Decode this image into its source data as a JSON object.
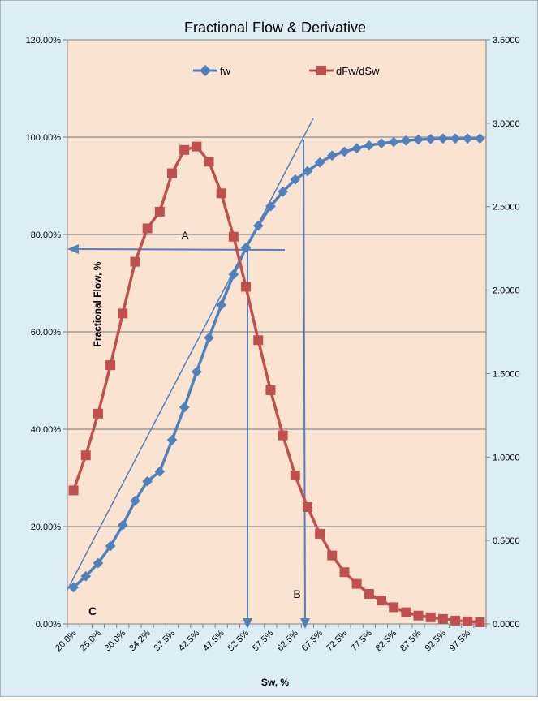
{
  "chart_data": {
    "type": "line",
    "title": "Fractional Flow & Derivative",
    "xlabel": "Sw, %",
    "ylabel": "Fractional Flow, %",
    "y2label": "",
    "legend_position": "top",
    "grid": true,
    "colors": {
      "outer_bg": "#dcedf5",
      "plot_bg": "#fbe3d1",
      "fw": "#4f81bd",
      "dfw": "#c0504d",
      "annotation": "#4f81bd",
      "grid": "#8c8c8c"
    },
    "ylim": [
      0,
      1.2
    ],
    "y2lim": [
      0,
      3.5
    ],
    "y_ticks": [
      "0.00%",
      "20.00%",
      "40.00%",
      "60.00%",
      "80.00%",
      "100.00%",
      "120.00%"
    ],
    "y2_ticks": [
      "0.0000",
      "0.5000",
      "1.0000",
      "1.5000",
      "2.0000",
      "2.5000",
      "3.0000",
      "3.5000"
    ],
    "x_tick_labels": [
      "20.0%",
      "25.0%",
      "30.0%",
      "34.2%",
      "37.5%",
      "42.5%",
      "47.5%",
      "52.5%",
      "57.5%",
      "62.5%",
      "67.5%",
      "72.5%",
      "77.5%",
      "82.5%",
      "87.5%",
      "92.5%",
      "97.5%"
    ],
    "x_tick_positions": [
      0,
      2,
      4,
      6,
      8,
      10,
      12,
      14,
      16,
      18,
      20,
      22,
      24,
      26,
      28,
      30,
      32
    ],
    "point_count": 34,
    "series": [
      {
        "name": "fw",
        "axis": "left",
        "marker": "diamond",
        "values": [
          0.075,
          0.098,
          0.125,
          0.16,
          0.203,
          0.253,
          0.293,
          0.313,
          0.378,
          0.445,
          0.518,
          0.588,
          0.655,
          0.718,
          0.773,
          0.818,
          0.858,
          0.888,
          0.913,
          0.93,
          0.948,
          0.962,
          0.97,
          0.977,
          0.983,
          0.987,
          0.99,
          0.993,
          0.995,
          0.996,
          0.997,
          0.997,
          0.997,
          0.997
        ]
      },
      {
        "name": "dFw/dSw",
        "axis": "right",
        "marker": "square",
        "values": [
          0.8,
          1.01,
          1.26,
          1.55,
          1.86,
          2.17,
          2.37,
          2.47,
          2.7,
          2.84,
          2.86,
          2.77,
          2.58,
          2.32,
          2.02,
          1.7,
          1.4,
          1.13,
          0.89,
          0.7,
          0.54,
          0.41,
          0.31,
          0.24,
          0.18,
          0.14,
          0.1,
          0.07,
          0.05,
          0.04,
          0.03,
          0.02,
          0.015,
          0.01
        ]
      }
    ],
    "annotations": {
      "label_a": "A",
      "label_b": "B",
      "label_c": "C"
    }
  }
}
